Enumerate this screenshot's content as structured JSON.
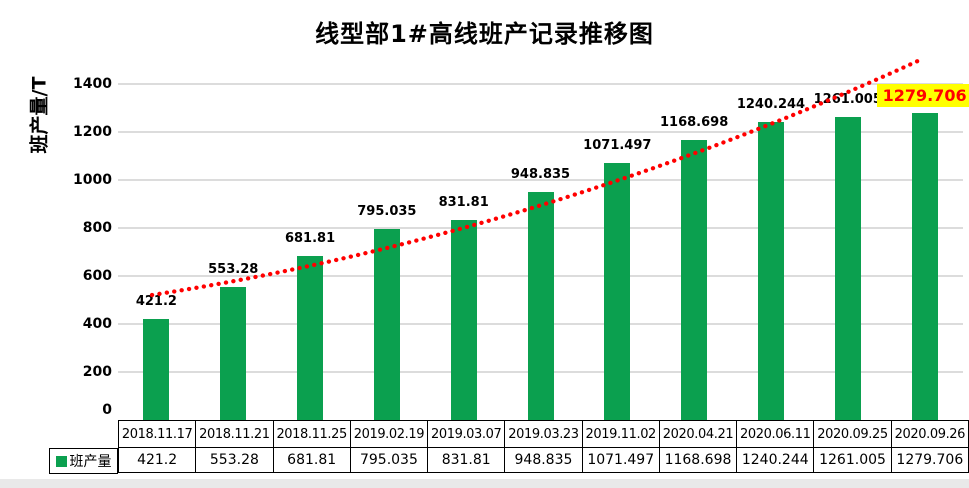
{
  "title": "线型部1#高线班产记录推移图",
  "y_axis": {
    "label": "班产量/T"
  },
  "legend": {
    "label": "班产量"
  },
  "chart_data": {
    "type": "bar",
    "title": "线型部1#高线班产记录推移图",
    "xlabel": "",
    "ylabel": "班产量/T",
    "ylim": [
      0,
      1400
    ],
    "y_tick_step": 200,
    "grid": "horizontal",
    "legend_position": "bottom-left-table",
    "categories": [
      "2018.11.17",
      "2018.11.21",
      "2018.11.25",
      "2019.02.19",
      "2019.03.07",
      "2019.03.23",
      "2019.11.02",
      "2020.04.21",
      "2020.06.11",
      "2020.09.25",
      "2020.09.26"
    ],
    "series": [
      {
        "name": "班产量",
        "values": [
          421.2,
          553.28,
          681.81,
          795.035,
          831.81,
          948.835,
          1071.497,
          1168.698,
          1240.244,
          1261.005,
          1279.706
        ]
      }
    ],
    "data_labels": [
      "421.2",
      "553.28",
      "681.81",
      "795.035",
      "831.81",
      "948.835",
      "1071.497",
      "1168.698",
      "1240.244",
      "1261.005",
      "1279.706"
    ],
    "bar_color": "#0ba04f",
    "trendline": {
      "style": "dotted",
      "color": "#ff0000"
    },
    "highlight": {
      "index": 10,
      "background": "#ffff00",
      "color": "#ff0000"
    }
  }
}
